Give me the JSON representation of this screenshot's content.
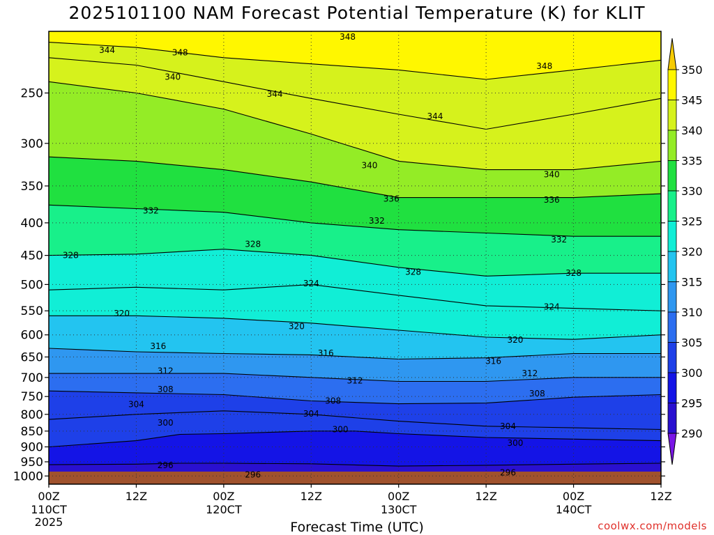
{
  "title": "2025101100 NAM Forecast Potential Temperature (K) for KLIT",
  "xlabel": "Forecast Time (UTC)",
  "credit": "coolwx.com/models",
  "chart_data": {
    "type": "heatmap",
    "title": "2025101100 NAM Forecast Potential Temperature (K) for KLIT",
    "xlabel": "Forecast Time (UTC)",
    "ylabel": "",
    "y_scale": "log",
    "y_reversed": true,
    "ylim": [
      1030,
      200
    ],
    "xlim": [
      0,
      84
    ],
    "yticks": [
      250,
      300,
      350,
      400,
      450,
      500,
      550,
      600,
      650,
      700,
      750,
      800,
      850,
      900,
      950,
      1000
    ],
    "xticks": [
      {
        "hour": 0,
        "label": "00Z",
        "sub": "110CT",
        "sub2": "2025"
      },
      {
        "hour": 12,
        "label": "12Z",
        "sub": "",
        "sub2": ""
      },
      {
        "hour": 24,
        "label": "00Z",
        "sub": "120CT",
        "sub2": ""
      },
      {
        "hour": 36,
        "label": "12Z",
        "sub": "",
        "sub2": ""
      },
      {
        "hour": 48,
        "label": "00Z",
        "sub": "130CT",
        "sub2": ""
      },
      {
        "hour": 60,
        "label": "12Z",
        "sub": "",
        "sub2": ""
      },
      {
        "hour": 72,
        "label": "00Z",
        "sub": "140CT",
        "sub2": ""
      },
      {
        "hour": 84,
        "label": "12Z",
        "sub": "",
        "sub2": ""
      }
    ],
    "colorbar": {
      "levels": [
        290,
        295,
        300,
        305,
        310,
        315,
        320,
        325,
        330,
        335,
        340,
        345,
        350
      ],
      "colors": [
        "#7a16e6",
        "#2a10d0",
        "#1414e6",
        "#1e40e8",
        "#2c6ef0",
        "#2f97f0",
        "#23c4f0",
        "#11eed6",
        "#18f08a",
        "#20e040",
        "#94ec26",
        "#d6f21c",
        "#fff700",
        "#f6cb02"
      ]
    },
    "grid": true,
    "ground_color": "#a0522d",
    "contours": [
      {
        "theta": 296,
        "points": [
          [
            0,
            960
          ],
          [
            12,
            958
          ],
          [
            18,
            955
          ],
          [
            24,
            955
          ],
          [
            36,
            957
          ],
          [
            48,
            965
          ],
          [
            60,
            962
          ],
          [
            72,
            958
          ],
          [
            84,
            955
          ]
        ]
      },
      {
        "theta": 300,
        "points": [
          [
            0,
            900
          ],
          [
            12,
            880
          ],
          [
            18,
            860
          ],
          [
            24,
            858
          ],
          [
            36,
            850
          ],
          [
            42,
            850
          ],
          [
            48,
            858
          ],
          [
            60,
            870
          ],
          [
            72,
            875
          ],
          [
            84,
            880
          ]
        ]
      },
      {
        "theta": 304,
        "points": [
          [
            0,
            815
          ],
          [
            12,
            800
          ],
          [
            24,
            790
          ],
          [
            36,
            800
          ],
          [
            48,
            820
          ],
          [
            60,
            835
          ],
          [
            72,
            840
          ],
          [
            84,
            845
          ]
        ]
      },
      {
        "theta": 308,
        "points": [
          [
            0,
            735
          ],
          [
            12,
            740
          ],
          [
            24,
            745
          ],
          [
            36,
            762
          ],
          [
            48,
            770
          ],
          [
            60,
            768
          ],
          [
            72,
            752
          ],
          [
            84,
            745
          ]
        ]
      },
      {
        "theta": 312,
        "points": [
          [
            0,
            690
          ],
          [
            12,
            690
          ],
          [
            24,
            690
          ],
          [
            36,
            700
          ],
          [
            48,
            710
          ],
          [
            60,
            710
          ],
          [
            72,
            700
          ],
          [
            84,
            700
          ]
        ]
      },
      {
        "theta": 316,
        "points": [
          [
            0,
            630
          ],
          [
            12,
            638
          ],
          [
            24,
            642
          ],
          [
            36,
            645
          ],
          [
            48,
            655
          ],
          [
            60,
            652
          ],
          [
            72,
            642
          ],
          [
            84,
            642
          ]
        ]
      },
      {
        "theta": 320,
        "points": [
          [
            0,
            560
          ],
          [
            12,
            560
          ],
          [
            24,
            565
          ],
          [
            36,
            575
          ],
          [
            48,
            590
          ],
          [
            60,
            605
          ],
          [
            72,
            610
          ],
          [
            84,
            600
          ]
        ]
      },
      {
        "theta": 324,
        "points": [
          [
            0,
            510
          ],
          [
            12,
            505
          ],
          [
            24,
            510
          ],
          [
            36,
            500
          ],
          [
            48,
            520
          ],
          [
            60,
            540
          ],
          [
            72,
            545
          ],
          [
            84,
            550
          ]
        ]
      },
      {
        "theta": 328,
        "points": [
          [
            0,
            450
          ],
          [
            12,
            448
          ],
          [
            24,
            440
          ],
          [
            36,
            450
          ],
          [
            48,
            470
          ],
          [
            60,
            485
          ],
          [
            72,
            480
          ],
          [
            84,
            480
          ]
        ]
      },
      {
        "theta": 332,
        "points": [
          [
            0,
            375
          ],
          [
            12,
            380
          ],
          [
            24,
            385
          ],
          [
            36,
            400
          ],
          [
            48,
            410
          ],
          [
            60,
            415
          ],
          [
            72,
            420
          ],
          [
            84,
            420
          ]
        ]
      },
      {
        "theta": 336,
        "points": [
          [
            0,
            315
          ],
          [
            12,
            320
          ],
          [
            24,
            330
          ],
          [
            36,
            345
          ],
          [
            48,
            365
          ],
          [
            60,
            365
          ],
          [
            72,
            365
          ],
          [
            84,
            360
          ]
        ]
      },
      {
        "theta": 340,
        "points": [
          [
            0,
            240
          ],
          [
            12,
            250
          ],
          [
            24,
            265
          ],
          [
            36,
            290
          ],
          [
            48,
            320
          ],
          [
            60,
            330
          ],
          [
            72,
            330
          ],
          [
            84,
            320
          ]
        ]
      },
      {
        "theta": 344,
        "points": [
          [
            0,
            220
          ],
          [
            12,
            226
          ],
          [
            24,
            240
          ],
          [
            36,
            255
          ],
          [
            48,
            270
          ],
          [
            60,
            285
          ],
          [
            72,
            270
          ],
          [
            84,
            255
          ]
        ]
      },
      {
        "theta": 348,
        "points": [
          [
            0,
            208
          ],
          [
            12,
            212
          ],
          [
            24,
            220
          ],
          [
            36,
            225
          ],
          [
            48,
            230
          ],
          [
            60,
            238
          ],
          [
            72,
            230
          ],
          [
            84,
            222
          ]
        ]
      }
    ],
    "contour_labels": [
      {
        "text": "344",
        "hour": 8,
        "p": 214
      },
      {
        "text": "348",
        "hour": 18,
        "p": 216
      },
      {
        "text": "348",
        "hour": 41,
        "p": 204
      },
      {
        "text": "348",
        "hour": 68,
        "p": 227
      },
      {
        "text": "340",
        "hour": 17,
        "p": 236
      },
      {
        "text": "344",
        "hour": 31,
        "p": 251
      },
      {
        "text": "344",
        "hour": 53,
        "p": 272
      },
      {
        "text": "340",
        "hour": 44,
        "p": 325
      },
      {
        "text": "340",
        "hour": 69,
        "p": 336
      },
      {
        "text": "336",
        "hour": 47,
        "p": 367
      },
      {
        "text": "336",
        "hour": 69,
        "p": 368
      },
      {
        "text": "332",
        "hour": 14,
        "p": 383
      },
      {
        "text": "332",
        "hour": 45,
        "p": 397
      },
      {
        "text": "332",
        "hour": 70,
        "p": 425
      },
      {
        "text": "328",
        "hour": 3,
        "p": 450
      },
      {
        "text": "328",
        "hour": 28,
        "p": 432
      },
      {
        "text": "328",
        "hour": 50,
        "p": 478
      },
      {
        "text": "328",
        "hour": 72,
        "p": 480
      },
      {
        "text": "324",
        "hour": 36,
        "p": 498
      },
      {
        "text": "324",
        "hour": 69,
        "p": 542
      },
      {
        "text": "320",
        "hour": 10,
        "p": 555
      },
      {
        "text": "320",
        "hour": 34,
        "p": 582
      },
      {
        "text": "320",
        "hour": 64,
        "p": 611
      },
      {
        "text": "316",
        "hour": 15,
        "p": 625
      },
      {
        "text": "316",
        "hour": 38,
        "p": 641
      },
      {
        "text": "316",
        "hour": 61,
        "p": 660
      },
      {
        "text": "312",
        "hour": 16,
        "p": 684
      },
      {
        "text": "312",
        "hour": 42,
        "p": 708
      },
      {
        "text": "312",
        "hour": 66,
        "p": 690
      },
      {
        "text": "308",
        "hour": 16,
        "p": 731
      },
      {
        "text": "308",
        "hour": 39,
        "p": 762
      },
      {
        "text": "308",
        "hour": 67,
        "p": 742
      },
      {
        "text": "304",
        "hour": 12,
        "p": 772
      },
      {
        "text": "304",
        "hour": 36,
        "p": 798
      },
      {
        "text": "304",
        "hour": 63,
        "p": 835
      },
      {
        "text": "300",
        "hour": 16,
        "p": 825
      },
      {
        "text": "300",
        "hour": 40,
        "p": 845
      },
      {
        "text": "300",
        "hour": 64,
        "p": 888
      },
      {
        "text": "296",
        "hour": 16,
        "p": 962
      },
      {
        "text": "296",
        "hour": 28,
        "p": 995
      },
      {
        "text": "296",
        "hour": 63,
        "p": 988
      }
    ]
  }
}
